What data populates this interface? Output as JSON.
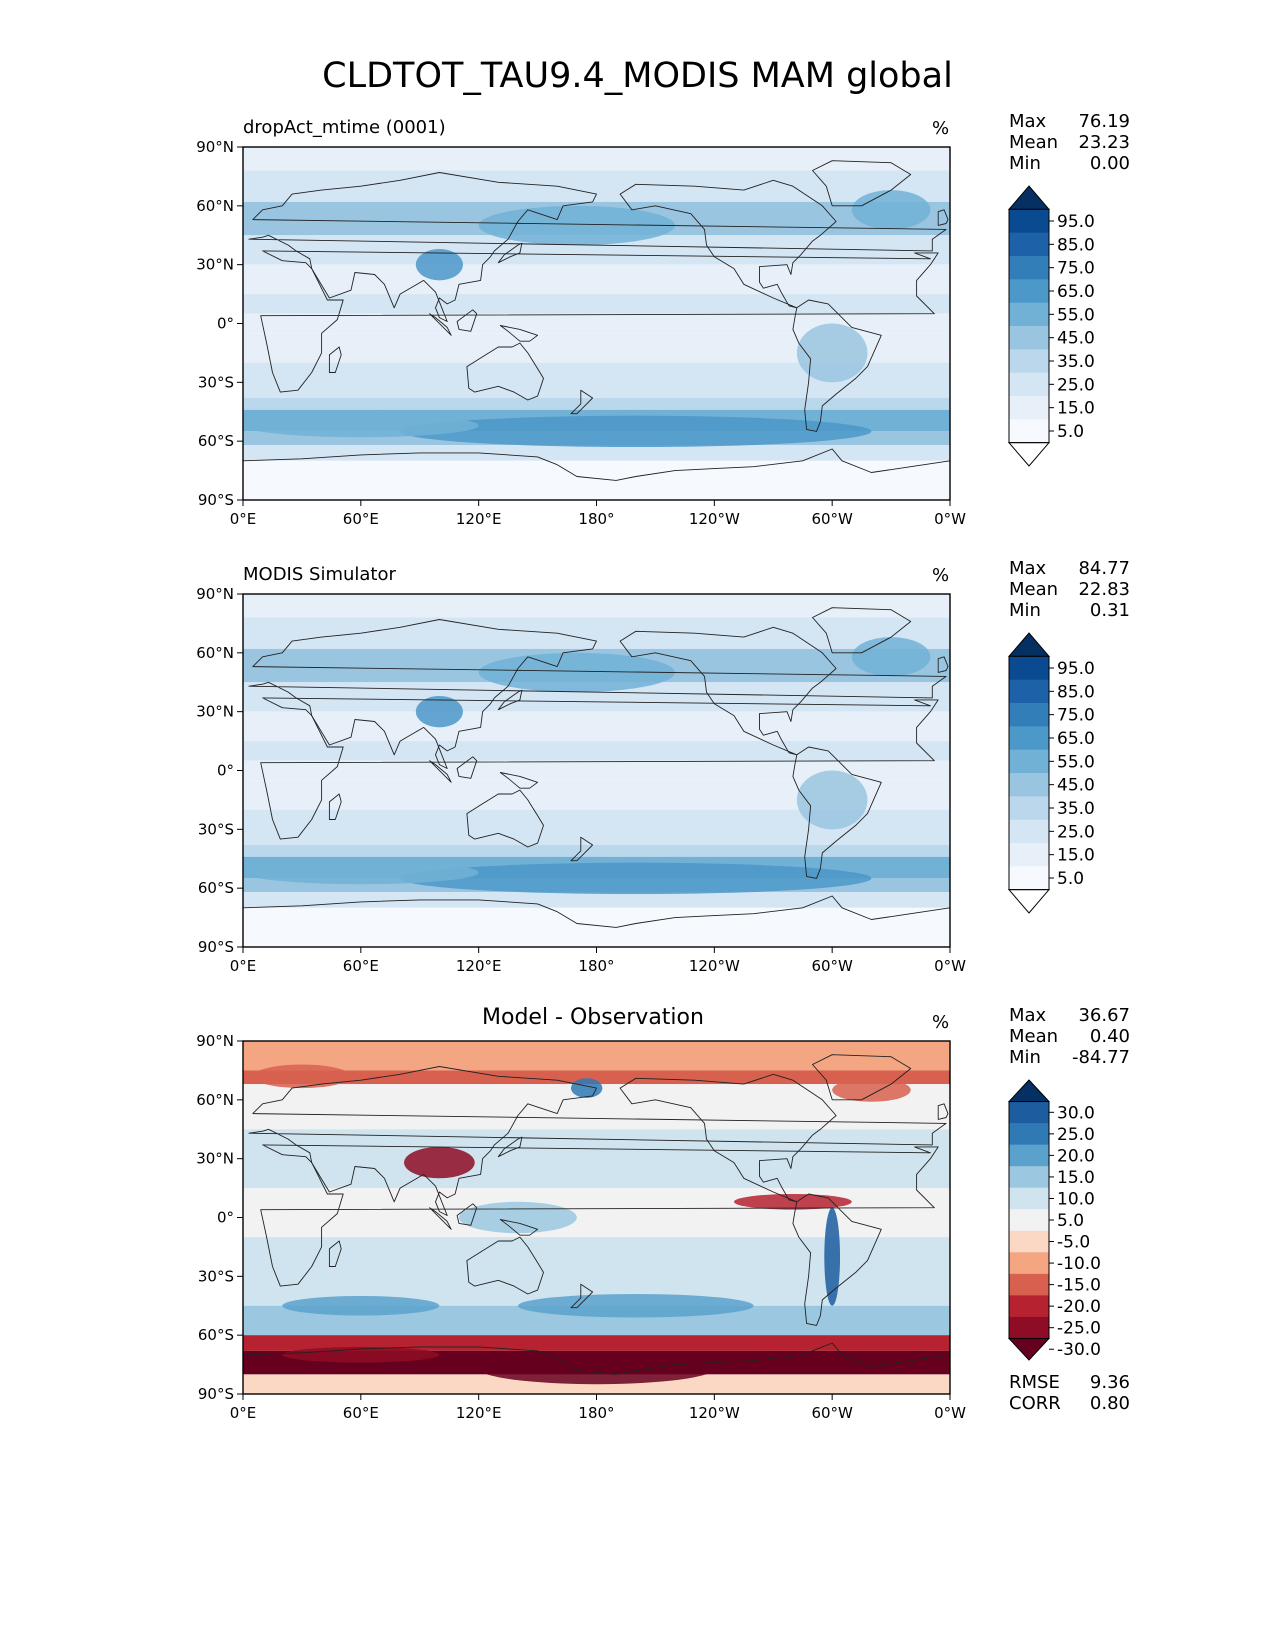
{
  "figure_title": "CLDTOT_TAU9.4_MODIS MAM global",
  "chart_data": [
    {
      "type": "heatmap",
      "title": "dropAct_mtime (0001)",
      "units": "%",
      "stats": {
        "max": "76.19",
        "mean": "23.23",
        "min": "0.00"
      },
      "stat_labels": {
        "max": "Max",
        "mean": "Mean",
        "min": "Min"
      },
      "x_ticks": [
        "0°E",
        "60°E",
        "120°E",
        "180°",
        "120°W",
        "60°W",
        "0°W"
      ],
      "y_ticks": [
        "90°N",
        "60°N",
        "30°N",
        "0°",
        "30°S",
        "60°S",
        "90°S"
      ],
      "xlim": [
        0,
        360
      ],
      "ylim": [
        -90,
        90
      ],
      "colorbar": {
        "labels": [
          "95.0",
          "85.0",
          "75.0",
          "65.0",
          "55.0",
          "45.0",
          "35.0",
          "25.0",
          "15.0",
          "5.0"
        ],
        "colors": [
          "#053061",
          "#0a4a90",
          "#1d62a9",
          "#327eb9",
          "#4b98c9",
          "#71b1d6",
          "#9ac5e1",
          "#bad7ec",
          "#d4e5f4",
          "#e7f0f9",
          "#f6faff",
          "#ffffff"
        ]
      }
    },
    {
      "type": "heatmap",
      "title": "MODIS Simulator",
      "units": "%",
      "stats": {
        "max": "84.77",
        "mean": "22.83",
        "min": "0.31"
      },
      "stat_labels": {
        "max": "Max",
        "mean": "Mean",
        "min": "Min"
      },
      "x_ticks": [
        "0°E",
        "60°E",
        "120°E",
        "180°",
        "120°W",
        "60°W",
        "0°W"
      ],
      "y_ticks": [
        "90°N",
        "60°N",
        "30°N",
        "0°",
        "30°S",
        "60°S",
        "90°S"
      ],
      "xlim": [
        0,
        360
      ],
      "ylim": [
        -90,
        90
      ],
      "colorbar": {
        "labels": [
          "95.0",
          "85.0",
          "75.0",
          "65.0",
          "55.0",
          "45.0",
          "35.0",
          "25.0",
          "15.0",
          "5.0"
        ],
        "colors": [
          "#053061",
          "#0a4a90",
          "#1d62a9",
          "#327eb9",
          "#4b98c9",
          "#71b1d6",
          "#9ac5e1",
          "#bad7ec",
          "#d4e5f4",
          "#e7f0f9",
          "#f6faff",
          "#ffffff"
        ]
      }
    },
    {
      "type": "heatmap",
      "title": "Model - Observation",
      "units": "%",
      "stats": {
        "max": "36.67",
        "mean": "0.40",
        "min": "-84.77"
      },
      "stat_labels": {
        "max": "Max",
        "mean": "Mean",
        "min": "Min"
      },
      "extra_stats": {
        "rmse": "9.36",
        "corr": "0.80"
      },
      "extra_stat_labels": {
        "rmse": "RMSE",
        "corr": "CORR"
      },
      "x_ticks": [
        "0°E",
        "60°E",
        "120°E",
        "180°",
        "120°W",
        "60°W",
        "0°W"
      ],
      "y_ticks": [
        "90°N",
        "60°N",
        "30°N",
        "0°",
        "30°S",
        "60°S",
        "90°S"
      ],
      "xlim": [
        0,
        360
      ],
      "ylim": [
        -90,
        90
      ],
      "colorbar": {
        "labels": [
          "30.0",
          "25.0",
          "20.0",
          "15.0",
          "10.0",
          "5.0",
          "-5.0",
          "-10.0",
          "-15.0",
          "-20.0",
          "-25.0",
          "-30.0"
        ],
        "colors": [
          "#053061",
          "#1c5c9f",
          "#2f79b5",
          "#5aa2cc",
          "#9bc8e0",
          "#cfe4ef",
          "#f2f2f2",
          "#fbd8c4",
          "#f4a683",
          "#d8604f",
          "#b62230",
          "#8e0c25",
          "#67001f"
        ]
      }
    }
  ]
}
